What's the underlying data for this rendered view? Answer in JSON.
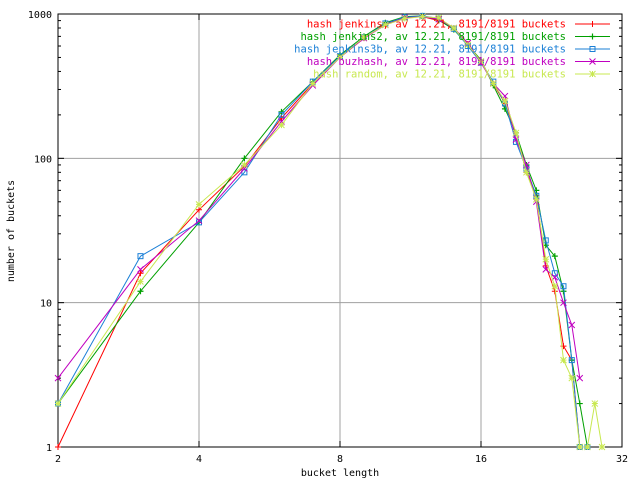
{
  "chart_data": {
    "type": "line",
    "xlabel": "bucket length",
    "ylabel": "number of buckets",
    "x_scale": "log2",
    "y_scale": "log10",
    "xlim": [
      2,
      32
    ],
    "ylim": [
      1,
      1000
    ],
    "x_ticks": [
      "2",
      "4",
      "8",
      "16",
      "32"
    ],
    "y_ticks": [
      "1",
      "10",
      "100",
      "1000"
    ],
    "grid": true,
    "legend_position": "top-right",
    "series": [
      {
        "name": "hash jenkins, av 12.21, 8191/8191 buckets",
        "color": "#ff0000",
        "marker": "plus",
        "points": [
          [
            2,
            1
          ],
          [
            3,
            16
          ],
          [
            4,
            44
          ],
          [
            5,
            88
          ],
          [
            6,
            190
          ],
          [
            7,
            330
          ],
          [
            8,
            500
          ],
          [
            9,
            680
          ],
          [
            10,
            850
          ],
          [
            11,
            950
          ],
          [
            12,
            960
          ],
          [
            13,
            900
          ],
          [
            14,
            800
          ],
          [
            15,
            620
          ],
          [
            16,
            470
          ],
          [
            17,
            330
          ],
          [
            18,
            240
          ],
          [
            19,
            150
          ],
          [
            20,
            80
          ],
          [
            21,
            55
          ],
          [
            22,
            18
          ],
          [
            23,
            12
          ],
          [
            24,
            5
          ],
          [
            25,
            4
          ],
          [
            26,
            1
          ],
          [
            27,
            1
          ]
        ]
      },
      {
        "name": "hash jenkins2, av 12.21, 8191/8191 buckets",
        "color": "#00a000",
        "marker": "cross",
        "points": [
          [
            2,
            2
          ],
          [
            3,
            12
          ],
          [
            4,
            36
          ],
          [
            5,
            100
          ],
          [
            6,
            210
          ],
          [
            7,
            340
          ],
          [
            8,
            520
          ],
          [
            9,
            700
          ],
          [
            10,
            870
          ],
          [
            11,
            960
          ],
          [
            12,
            970
          ],
          [
            13,
            910
          ],
          [
            14,
            780
          ],
          [
            15,
            610
          ],
          [
            16,
            480
          ],
          [
            17,
            320
          ],
          [
            18,
            220
          ],
          [
            19,
            150
          ],
          [
            20,
            90
          ],
          [
            21,
            60
          ],
          [
            22,
            25
          ],
          [
            23,
            21
          ],
          [
            24,
            12
          ],
          [
            25,
            4
          ],
          [
            26,
            2
          ],
          [
            27,
            1
          ]
        ]
      },
      {
        "name": "hash jenkins3b, av 12.21, 8191/8191 buckets",
        "color": "#1a7fd6",
        "marker": "square",
        "points": [
          [
            2,
            2
          ],
          [
            3,
            21
          ],
          [
            4,
            36
          ],
          [
            5,
            80
          ],
          [
            6,
            200
          ],
          [
            7,
            340
          ],
          [
            8,
            510
          ],
          [
            9,
            690
          ],
          [
            10,
            860
          ],
          [
            11,
            950
          ],
          [
            12,
            970
          ],
          [
            13,
            930
          ],
          [
            14,
            790
          ],
          [
            15,
            600
          ],
          [
            16,
            460
          ],
          [
            17,
            340
          ],
          [
            18,
            240
          ],
          [
            19,
            130
          ],
          [
            20,
            85
          ],
          [
            21,
            55
          ],
          [
            22,
            27
          ],
          [
            23,
            16
          ],
          [
            24,
            13
          ],
          [
            25,
            4
          ],
          [
            26,
            1
          ],
          [
            27,
            1
          ]
        ]
      },
      {
        "name": "hash buzhash, av 12.21, 8191/8191 buckets",
        "color": "#c000c0",
        "marker": "x",
        "points": [
          [
            2,
            3
          ],
          [
            3,
            17
          ],
          [
            4,
            37
          ],
          [
            5,
            85
          ],
          [
            6,
            180
          ],
          [
            7,
            320
          ],
          [
            8,
            500
          ],
          [
            9,
            680
          ],
          [
            10,
            840
          ],
          [
            11,
            940
          ],
          [
            12,
            960
          ],
          [
            13,
            920
          ],
          [
            14,
            800
          ],
          [
            15,
            630
          ],
          [
            16,
            460
          ],
          [
            17,
            330
          ],
          [
            18,
            270
          ],
          [
            19,
            135
          ],
          [
            20,
            90
          ],
          [
            21,
            50
          ],
          [
            22,
            17
          ],
          [
            23,
            15
          ],
          [
            24,
            10
          ],
          [
            25,
            7
          ],
          [
            26,
            3
          ]
        ]
      },
      {
        "name": "hash random, av 12.21, 8191/8191 buckets",
        "color": "#c8e850",
        "marker": "star",
        "points": [
          [
            2,
            2
          ],
          [
            3,
            14
          ],
          [
            4,
            48
          ],
          [
            5,
            90
          ],
          [
            6,
            170
          ],
          [
            7,
            330
          ],
          [
            8,
            500
          ],
          [
            9,
            690
          ],
          [
            10,
            840
          ],
          [
            11,
            930
          ],
          [
            12,
            960
          ],
          [
            13,
            940
          ],
          [
            14,
            800
          ],
          [
            15,
            610
          ],
          [
            16,
            470
          ],
          [
            17,
            330
          ],
          [
            18,
            250
          ],
          [
            19,
            150
          ],
          [
            20,
            80
          ],
          [
            21,
            52
          ],
          [
            22,
            20
          ],
          [
            23,
            13
          ],
          [
            24,
            4
          ],
          [
            25,
            3
          ],
          [
            26,
            1
          ],
          [
            27,
            1
          ],
          [
            28,
            2
          ],
          [
            29,
            1
          ]
        ]
      }
    ]
  }
}
